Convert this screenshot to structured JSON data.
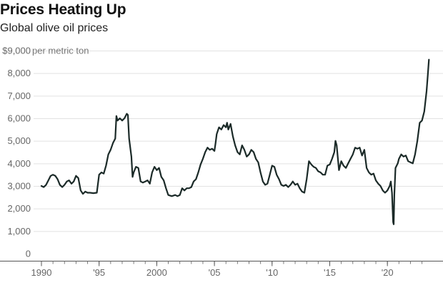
{
  "chart_data": {
    "type": "line",
    "title": "Prices Heating Up",
    "subtitle": "Global olive oil prices",
    "ylabel": "per metric ton",
    "xlabel": "",
    "ylim": [
      0,
      9000
    ],
    "xlim": [
      1990,
      2023.8
    ],
    "grid": "horizontal",
    "color": "#1b2a28",
    "yticks": [
      {
        "value": 0,
        "label": "0"
      },
      {
        "value": 1000,
        "label": "1,000"
      },
      {
        "value": 2000,
        "label": "2,000"
      },
      {
        "value": 3000,
        "label": "3,000"
      },
      {
        "value": 4000,
        "label": "4,000"
      },
      {
        "value": 5000,
        "label": "5,000"
      },
      {
        "value": 6000,
        "label": "6,000"
      },
      {
        "value": 7000,
        "label": "7,000"
      },
      {
        "value": 8000,
        "label": "8,000"
      },
      {
        "value": 9000,
        "label": "$9,000"
      }
    ],
    "xticks": [
      {
        "value": 1990,
        "label": "1990"
      },
      {
        "value": 1995,
        "label": "'95"
      },
      {
        "value": 2000,
        "label": "2000"
      },
      {
        "value": 2005,
        "label": "'05"
      },
      {
        "value": 2010,
        "label": "'10"
      },
      {
        "value": 2015,
        "label": "'15"
      },
      {
        "value": 2020,
        "label": "'20"
      }
    ],
    "series": [
      {
        "points": [
          [
            1990.0,
            3000
          ],
          [
            1990.2,
            2950
          ],
          [
            1990.4,
            3050
          ],
          [
            1990.6,
            3250
          ],
          [
            1990.8,
            3450
          ],
          [
            1991.0,
            3500
          ],
          [
            1991.2,
            3450
          ],
          [
            1991.4,
            3300
          ],
          [
            1991.6,
            3050
          ],
          [
            1991.8,
            2950
          ],
          [
            1992.0,
            3050
          ],
          [
            1992.2,
            3200
          ],
          [
            1992.4,
            3250
          ],
          [
            1992.6,
            3100
          ],
          [
            1992.8,
            3200
          ],
          [
            1993.0,
            3450
          ],
          [
            1993.2,
            3350
          ],
          [
            1993.4,
            2800
          ],
          [
            1993.6,
            2650
          ],
          [
            1993.8,
            2750
          ],
          [
            1994.0,
            2700
          ],
          [
            1994.2,
            2700
          ],
          [
            1994.5,
            2680
          ],
          [
            1994.8,
            2700
          ],
          [
            1995.0,
            3500
          ],
          [
            1995.2,
            3600
          ],
          [
            1995.4,
            3550
          ],
          [
            1995.6,
            3900
          ],
          [
            1995.8,
            4400
          ],
          [
            1996.0,
            4600
          ],
          [
            1996.2,
            4900
          ],
          [
            1996.4,
            5100
          ],
          [
            1996.5,
            6100
          ],
          [
            1996.6,
            5900
          ],
          [
            1996.8,
            6000
          ],
          [
            1997.0,
            5900
          ],
          [
            1997.2,
            6000
          ],
          [
            1997.4,
            6200
          ],
          [
            1997.5,
            6150
          ],
          [
            1997.6,
            5100
          ],
          [
            1997.8,
            4300
          ],
          [
            1997.9,
            3400
          ],
          [
            1998.0,
            3600
          ],
          [
            1998.2,
            3850
          ],
          [
            1998.4,
            3800
          ],
          [
            1998.6,
            3200
          ],
          [
            1998.8,
            3150
          ],
          [
            1999.0,
            3200
          ],
          [
            1999.2,
            3250
          ],
          [
            1999.4,
            3100
          ],
          [
            1999.6,
            3600
          ],
          [
            1999.8,
            3850
          ],
          [
            2000.0,
            3700
          ],
          [
            2000.2,
            3800
          ],
          [
            2000.4,
            3400
          ],
          [
            2000.6,
            3250
          ],
          [
            2000.8,
            2900
          ],
          [
            2001.0,
            2600
          ],
          [
            2001.3,
            2550
          ],
          [
            2001.6,
            2600
          ],
          [
            2001.8,
            2550
          ],
          [
            2002.0,
            2600
          ],
          [
            2002.2,
            2900
          ],
          [
            2002.4,
            2800
          ],
          [
            2002.6,
            2900
          ],
          [
            2002.8,
            2900
          ],
          [
            2003.0,
            2950
          ],
          [
            2003.2,
            3200
          ],
          [
            2003.4,
            3300
          ],
          [
            2003.6,
            3600
          ],
          [
            2003.8,
            3950
          ],
          [
            2004.0,
            4200
          ],
          [
            2004.2,
            4500
          ],
          [
            2004.4,
            4700
          ],
          [
            2004.6,
            4600
          ],
          [
            2004.8,
            4650
          ],
          [
            2005.0,
            4550
          ],
          [
            2005.1,
            4900
          ],
          [
            2005.2,
            5300
          ],
          [
            2005.4,
            5600
          ],
          [
            2005.6,
            5500
          ],
          [
            2005.8,
            5700
          ],
          [
            2006.0,
            5600
          ],
          [
            2006.1,
            5800
          ],
          [
            2006.2,
            5500
          ],
          [
            2006.4,
            5750
          ],
          [
            2006.6,
            5200
          ],
          [
            2006.8,
            4800
          ],
          [
            2007.0,
            4500
          ],
          [
            2007.2,
            4400
          ],
          [
            2007.4,
            4800
          ],
          [
            2007.6,
            4600
          ],
          [
            2007.8,
            4300
          ],
          [
            2008.0,
            4400
          ],
          [
            2008.2,
            4600
          ],
          [
            2008.4,
            4500
          ],
          [
            2008.6,
            4200
          ],
          [
            2008.8,
            4050
          ],
          [
            2009.0,
            3600
          ],
          [
            2009.2,
            3200
          ],
          [
            2009.4,
            3050
          ],
          [
            2009.6,
            3100
          ],
          [
            2009.8,
            3500
          ],
          [
            2010.0,
            3900
          ],
          [
            2010.2,
            3850
          ],
          [
            2010.4,
            3500
          ],
          [
            2010.6,
            3300
          ],
          [
            2010.8,
            3050
          ],
          [
            2011.0,
            3000
          ],
          [
            2011.2,
            3050
          ],
          [
            2011.4,
            2950
          ],
          [
            2011.6,
            3050
          ],
          [
            2011.8,
            3200
          ],
          [
            2012.0,
            3050
          ],
          [
            2012.2,
            3100
          ],
          [
            2012.4,
            2900
          ],
          [
            2012.6,
            2750
          ],
          [
            2012.8,
            2700
          ],
          [
            2013.0,
            3300
          ],
          [
            2013.2,
            4100
          ],
          [
            2013.4,
            3950
          ],
          [
            2013.6,
            3850
          ],
          [
            2013.8,
            3800
          ],
          [
            2014.0,
            3650
          ],
          [
            2014.2,
            3600
          ],
          [
            2014.4,
            3500
          ],
          [
            2014.6,
            3500
          ],
          [
            2014.8,
            3900
          ],
          [
            2015.0,
            3950
          ],
          [
            2015.2,
            4200
          ],
          [
            2015.4,
            4500
          ],
          [
            2015.5,
            5000
          ],
          [
            2015.6,
            4800
          ],
          [
            2015.8,
            3700
          ],
          [
            2016.0,
            4100
          ],
          [
            2016.2,
            3900
          ],
          [
            2016.4,
            3800
          ],
          [
            2016.6,
            4000
          ],
          [
            2016.8,
            4200
          ],
          [
            2017.0,
            4400
          ],
          [
            2017.2,
            4700
          ],
          [
            2017.4,
            4650
          ],
          [
            2017.6,
            4700
          ],
          [
            2017.8,
            4350
          ],
          [
            2018.0,
            4600
          ],
          [
            2018.2,
            3800
          ],
          [
            2018.4,
            3600
          ],
          [
            2018.6,
            3500
          ],
          [
            2018.8,
            3550
          ],
          [
            2019.0,
            3250
          ],
          [
            2019.2,
            3100
          ],
          [
            2019.4,
            3000
          ],
          [
            2019.6,
            2800
          ],
          [
            2019.8,
            2700
          ],
          [
            2020.0,
            2800
          ],
          [
            2020.2,
            3000
          ],
          [
            2020.3,
            3200
          ],
          [
            2020.4,
            2700
          ],
          [
            2020.5,
            1400
          ],
          [
            2020.55,
            1300
          ],
          [
            2020.6,
            2600
          ],
          [
            2020.7,
            3800
          ],
          [
            2020.9,
            4000
          ],
          [
            2021.0,
            4200
          ],
          [
            2021.2,
            4400
          ],
          [
            2021.4,
            4300
          ],
          [
            2021.6,
            4350
          ],
          [
            2021.8,
            4100
          ],
          [
            2022.0,
            4050
          ],
          [
            2022.2,
            4000
          ],
          [
            2022.4,
            4400
          ],
          [
            2022.6,
            5000
          ],
          [
            2022.8,
            5800
          ],
          [
            2023.0,
            5900
          ],
          [
            2023.2,
            6300
          ],
          [
            2023.4,
            7200
          ],
          [
            2023.5,
            7900
          ],
          [
            2023.6,
            8600
          ]
        ]
      }
    ]
  }
}
